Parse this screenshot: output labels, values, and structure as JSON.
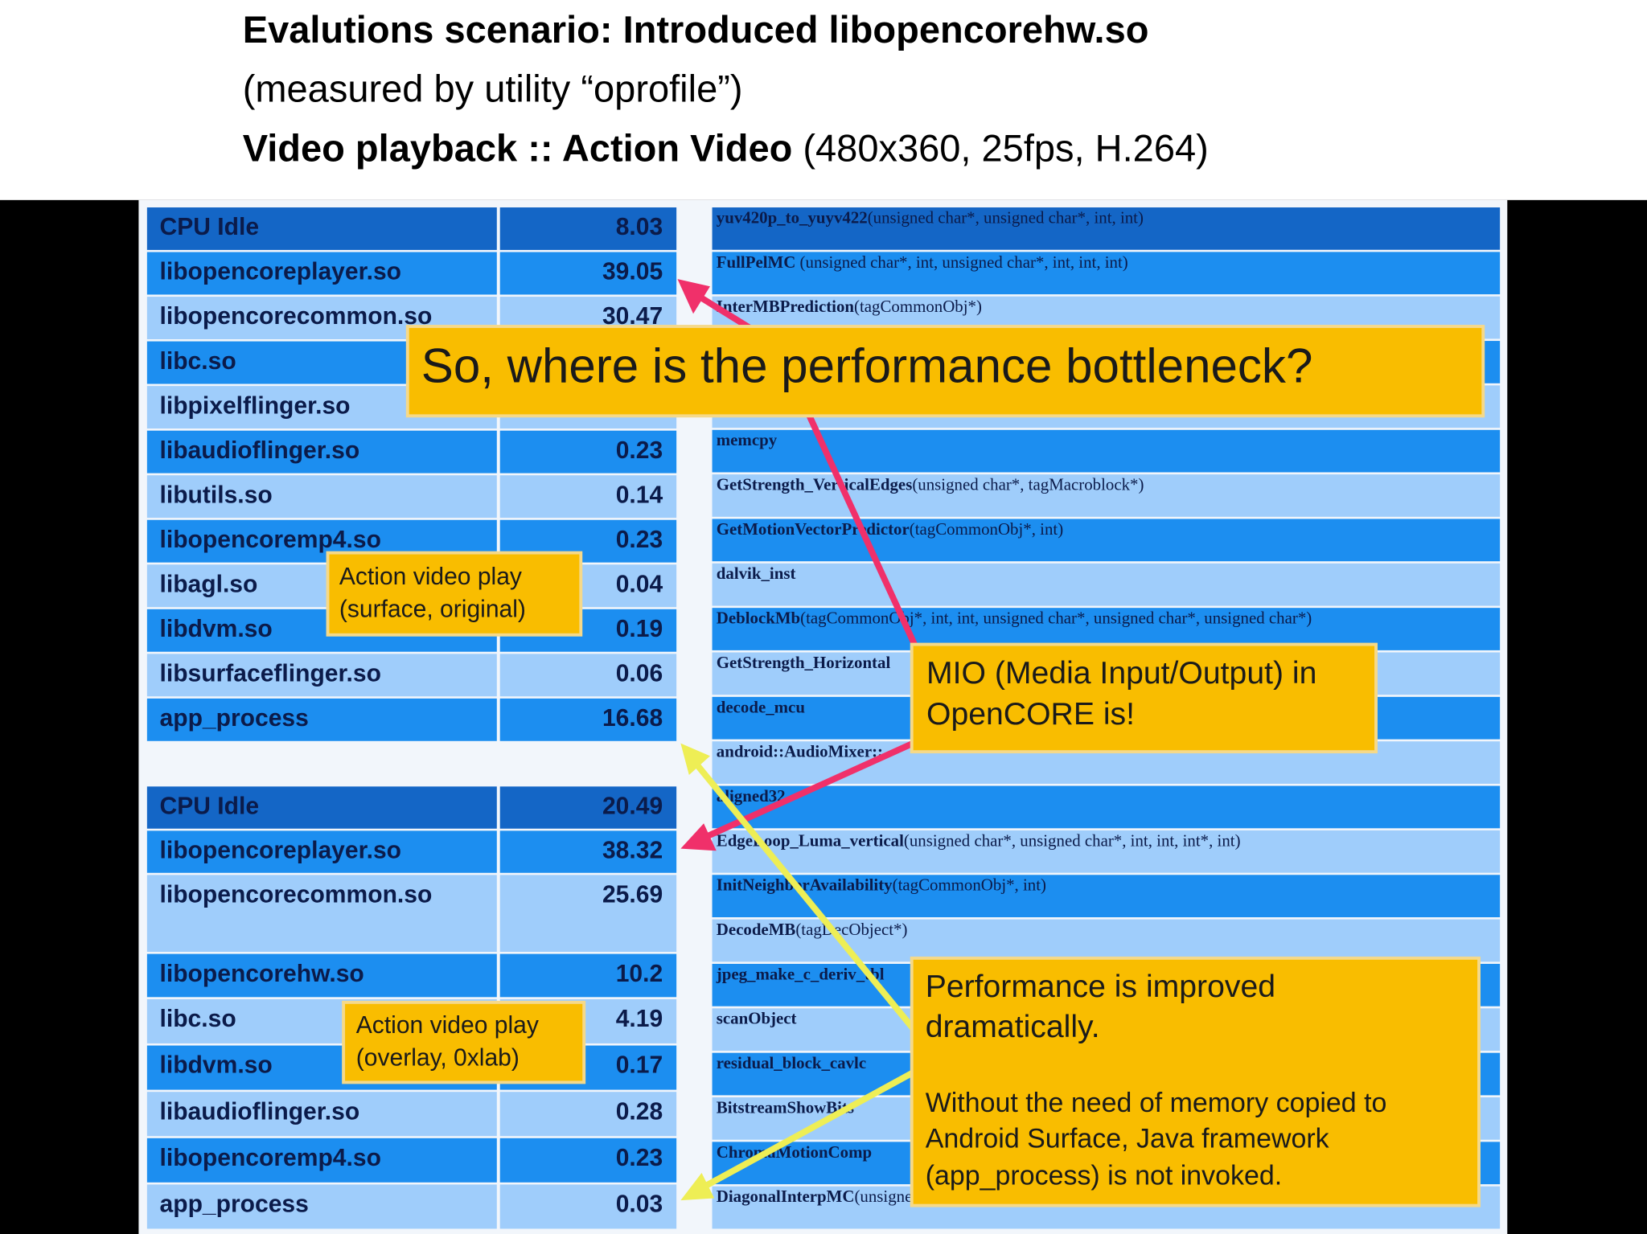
{
  "header": {
    "title": "Evalutions scenario: Introduced libopencorehw.so",
    "subtitle": "(measured by utility “oprofile”)",
    "scenario": "Video playback :: Action Video",
    "scenario_detail": " (480x360, 25fps, H.264)"
  },
  "table_original": {
    "rows": [
      [
        "CPU Idle",
        "8.03"
      ],
      [
        "libopencoreplayer.so",
        "39.05"
      ],
      [
        "libopencorecommon.so",
        "30.47"
      ],
      [
        "libc.so"
      ],
      [
        "libpixelflinger.so"
      ],
      [
        "libaudioflinger.so",
        "0.23"
      ],
      [
        "libutils.so",
        "0.14"
      ],
      [
        "libopencoremp4.so",
        "0.23"
      ],
      [
        "libagl.so",
        "0.04"
      ],
      [
        "libdvm.so",
        "0.19"
      ],
      [
        "libsurfaceflinger.so",
        "0.06"
      ],
      [
        "app_process",
        "16.68"
      ]
    ]
  },
  "table_0xlab": {
    "rows": [
      [
        "CPU Idle",
        "20.49"
      ],
      [
        "libopencoreplayer.so",
        "38.32"
      ],
      [
        "libopencorecommon.so",
        "25.69"
      ],
      [
        "libopencorehw.so",
        "10.2"
      ],
      [
        "libc.so",
        "4.19"
      ],
      [
        "libdvm.so",
        "0.17"
      ],
      [
        "libaudioflinger.so",
        "0.28"
      ],
      [
        "libopencoremp4.so",
        "0.23"
      ],
      [
        "app_process",
        "0.03"
      ]
    ]
  },
  "functions": [
    {
      "name": "yuv420p_to_yuyv422",
      "args": "(unsigned char*, unsigned char*, int, int)"
    },
    {
      "name": "FullPelMC",
      "args": " (unsigned char*, int, unsigned char*, int, int, int)"
    },
    {
      "name": "InterMBPrediction",
      "args": "(tagCommonObj*)"
    },
    null,
    null,
    {
      "name": "memcpy"
    },
    {
      "name": "GetStrength_VerticalEdges",
      "args": "(unsigned char*, tagMacroblock*)"
    },
    {
      "name": "GetMotionVectorPredictor",
      "args": "(tagCommonObj*, int)"
    },
    {
      "name": "dalvik_inst"
    },
    {
      "name": "DeblockMb",
      "args": "(tagCommonObj*, int, int, unsigned char*, unsigned char*, unsigned char*)"
    },
    {
      "name": "GetStrength_Horizontal"
    },
    {
      "name": "decode_mcu"
    },
    {
      "name": "android::AudioMixer::"
    },
    {
      "name": "aligned32"
    },
    {
      "name": "EdgeLoop_Luma_vertical",
      "args": "(unsigned char*, unsigned char*, int, int, int*, int)"
    },
    {
      "name": "InitNeighborAvailability",
      "args": "(tagCommonObj*, int)"
    },
    {
      "name": "DecodeMB",
      "args": "(tagDecObject*)"
    },
    {
      "name": "jpeg_make_c_deriv_tbl"
    },
    {
      "name": "scanObject"
    },
    {
      "name": "residual_block_cavlc"
    },
    {
      "name": "BitstreamShowBits"
    },
    {
      "name": "ChromaMotionComp"
    },
    {
      "name": "DiagonalInterpMC",
      "args": "(unsigned char*, unsigned char*, int, unsigned char*, int, int, int)"
    }
  ],
  "callouts": {
    "question": "So, where is the performance bottleneck?",
    "surface": [
      "Action video play",
      "(surface, original)"
    ],
    "mio": [
      "MIO (Media Input/Output) in",
      "OpenCORE is!"
    ],
    "overlay": [
      "Action video play",
      "(overlay, 0xlab)"
    ],
    "improved": [
      "Performance is improved",
      "dramatically.",
      "Without the need of memory copied to",
      "Android Surface, Java framework",
      "(app_process) is not invoked."
    ]
  }
}
